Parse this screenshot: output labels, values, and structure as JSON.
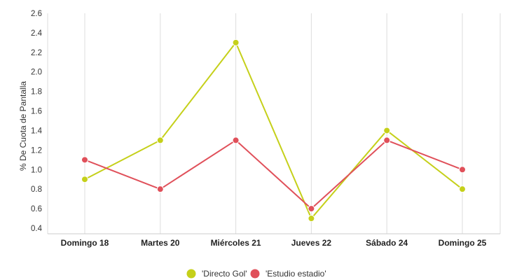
{
  "chart_data": {
    "type": "line",
    "title": "",
    "xlabel": "",
    "ylabel": "% De Cuota de Pantalla",
    "categories": [
      "Domingo 18",
      "Martes 20",
      "Miércoles 21",
      "Jueves 22",
      "Sábado 24",
      "Domingo 25"
    ],
    "ylim": [
      0.4,
      2.6
    ],
    "yticks": [
      "0.4",
      "0.6",
      "0.8",
      "1.0",
      "1.2",
      "1.4",
      "1.6",
      "1.8",
      "2.0",
      "2.2",
      "2.4",
      "2.6"
    ],
    "grid": "vertical",
    "legend_position": "bottom",
    "series": [
      {
        "name": "'Directo Gol'",
        "color": "#c5d01a",
        "values": [
          0.9,
          1.3,
          2.3,
          0.5,
          1.4,
          0.8
        ]
      },
      {
        "name": "'Estudio estadio'",
        "color": "#e0505a",
        "values": [
          1.1,
          0.8,
          1.3,
          0.6,
          1.3,
          1.0
        ]
      }
    ]
  }
}
